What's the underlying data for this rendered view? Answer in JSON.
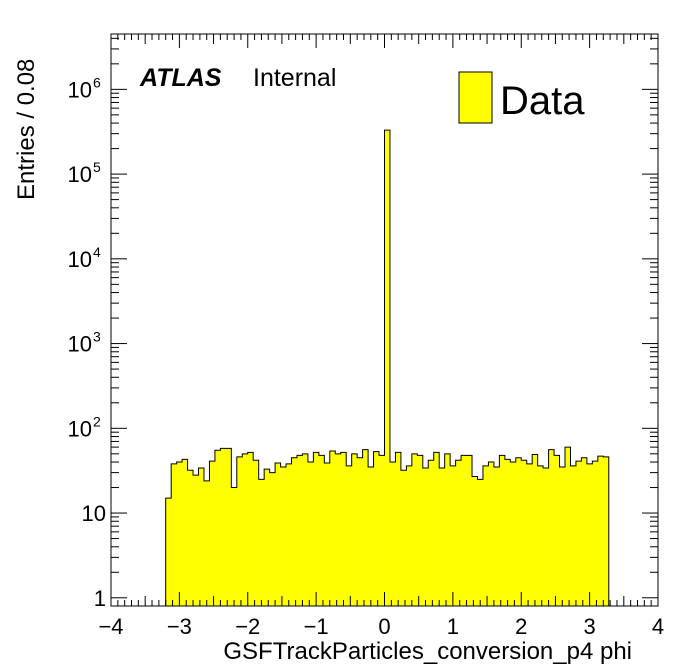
{
  "chart_data": {
    "type": "histogram",
    "xlabel": "GSFTrackParticles_conversion_p4 phi",
    "ylabel": "Entries / 0.08",
    "xlim": [
      -4,
      4
    ],
    "ylim": [
      0.8,
      4500000
    ],
    "y_scale": "log",
    "bin_width": 0.08,
    "x_start": -3.2,
    "x_ticks": [
      -4,
      -3,
      -2,
      -1,
      0,
      1,
      2,
      3,
      4
    ],
    "x_tick_labels": [
      "−4",
      "−3",
      "−2",
      "−1",
      "0",
      "1",
      "2",
      "3",
      "4"
    ],
    "y_ticks": [
      1,
      10,
      100,
      1000,
      10000,
      100000,
      1000000
    ],
    "y_tick_labels": [
      {
        "base": "1",
        "exp": ""
      },
      {
        "base": "10",
        "exp": ""
      },
      {
        "base": "10",
        "exp": "2"
      },
      {
        "base": "10",
        "exp": "3"
      },
      {
        "base": "10",
        "exp": "4"
      },
      {
        "base": "10",
        "exp": "5"
      },
      {
        "base": "10",
        "exp": "6"
      }
    ],
    "series": [
      {
        "name": "Data",
        "color": "#ffff00",
        "values": [
          15,
          38,
          40,
          43,
          32,
          28,
          34,
          24,
          41,
          55,
          58,
          58,
          20,
          46,
          50,
          52,
          42,
          25,
          33,
          30,
          39,
          35,
          38,
          45,
          48,
          50,
          40,
          52,
          48,
          39,
          54,
          50,
          52,
          36,
          50,
          45,
          56,
          35,
          53,
          48,
          330000,
          40,
          52,
          32,
          36,
          50,
          48,
          34,
          42,
          52,
          34,
          50,
          36,
          42,
          48,
          48,
          27,
          25,
          36,
          40,
          35,
          48,
          43,
          40,
          45,
          42,
          38,
          49,
          36,
          34,
          56,
          48,
          35,
          60,
          36,
          41,
          45,
          38,
          41,
          47,
          46
        ]
      }
    ],
    "legend": {
      "entries": [
        "Data"
      ],
      "position": "top-right"
    }
  },
  "annotation": {
    "experiment": "ATLAS",
    "status": "Internal"
  },
  "style": {
    "fill": "#ffff00",
    "line": "#000000",
    "frame": "#000000"
  }
}
